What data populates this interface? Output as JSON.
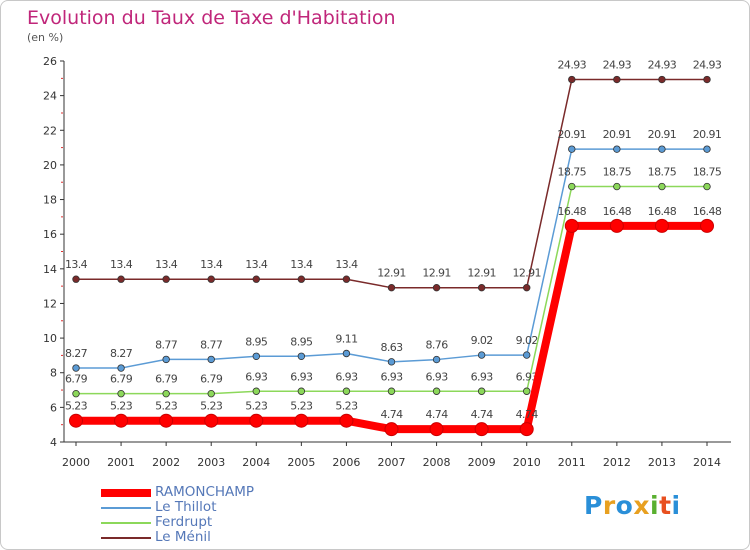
{
  "title": "Evolution du Taux de Taxe d'Habitation",
  "subtitle": "(en %)",
  "logo": {
    "letters": [
      "P",
      "r",
      "o",
      "x",
      "i",
      "t",
      "i"
    ],
    "colors": [
      "#2a8fd8",
      "#e8a020",
      "#2a8fd8",
      "#e8a020",
      "#5ab030",
      "#e85020",
      "#2a8fd8"
    ]
  },
  "chart_data": {
    "type": "line",
    "x": [
      "2000",
      "2001",
      "2002",
      "2003",
      "2004",
      "2005",
      "2006",
      "2007",
      "2008",
      "2009",
      "2010",
      "2011",
      "2012",
      "2013",
      "2014"
    ],
    "ylim": [
      4,
      26
    ],
    "yticks": [
      "4",
      "6",
      "8",
      "10",
      "12",
      "14",
      "16",
      "18",
      "20",
      "22",
      "24",
      "26"
    ],
    "grid": false,
    "legend_position": "bottom-left",
    "series": [
      {
        "name": "RAMONCHAMP",
        "color": "#ff0000",
        "values": [
          5.23,
          5.23,
          5.23,
          5.23,
          5.23,
          5.23,
          5.23,
          4.74,
          4.74,
          4.74,
          4.74,
          16.48,
          16.48,
          16.48,
          16.48
        ],
        "labels": [
          "5.23",
          "5.23",
          "5.23",
          "5.23",
          "5.23",
          "5.23",
          "5.23",
          "4.74",
          "4.74",
          "4.74",
          "4.74",
          "16.48",
          "16.48",
          "16.48",
          "16.48"
        ]
      },
      {
        "name": "Le Thillot",
        "color": "#5b9bd5",
        "values": [
          8.27,
          8.27,
          8.77,
          8.77,
          8.95,
          8.95,
          9.11,
          8.63,
          8.76,
          9.02,
          9.02,
          20.91,
          20.91,
          20.91,
          20.91
        ],
        "labels": [
          "8.27",
          "8.27",
          "8.77",
          "8.77",
          "8.95",
          "8.95",
          "9.11",
          "8.63",
          "8.76",
          "9.02",
          "9.02",
          "20.91",
          "20.91",
          "20.91",
          "20.91"
        ]
      },
      {
        "name": "Ferdrupt",
        "color": "#8cd85a",
        "values": [
          6.79,
          6.79,
          6.79,
          6.79,
          6.93,
          6.93,
          6.93,
          6.93,
          6.93,
          6.93,
          6.93,
          18.75,
          18.75,
          18.75,
          18.75
        ],
        "labels": [
          "6.79",
          "6.79",
          "6.79",
          "6.79",
          "6.93",
          "6.93",
          "6.93",
          "6.93",
          "6.93",
          "6.93",
          "6.93",
          "18.75",
          "18.75",
          "18.75",
          "18.75"
        ]
      },
      {
        "name": "Le Ménil",
        "color": "#7a2a2a",
        "values": [
          13.4,
          13.4,
          13.4,
          13.4,
          13.4,
          13.4,
          13.4,
          12.91,
          12.91,
          12.91,
          12.91,
          24.93,
          24.93,
          24.93,
          24.93
        ],
        "labels": [
          "13.4",
          "13.4",
          "13.4",
          "13.4",
          "13.4",
          "13.4",
          "13.4",
          "12.91",
          "12.91",
          "12.91",
          "12.91",
          "24.93",
          "24.93",
          "24.93",
          "24.93"
        ]
      }
    ]
  }
}
